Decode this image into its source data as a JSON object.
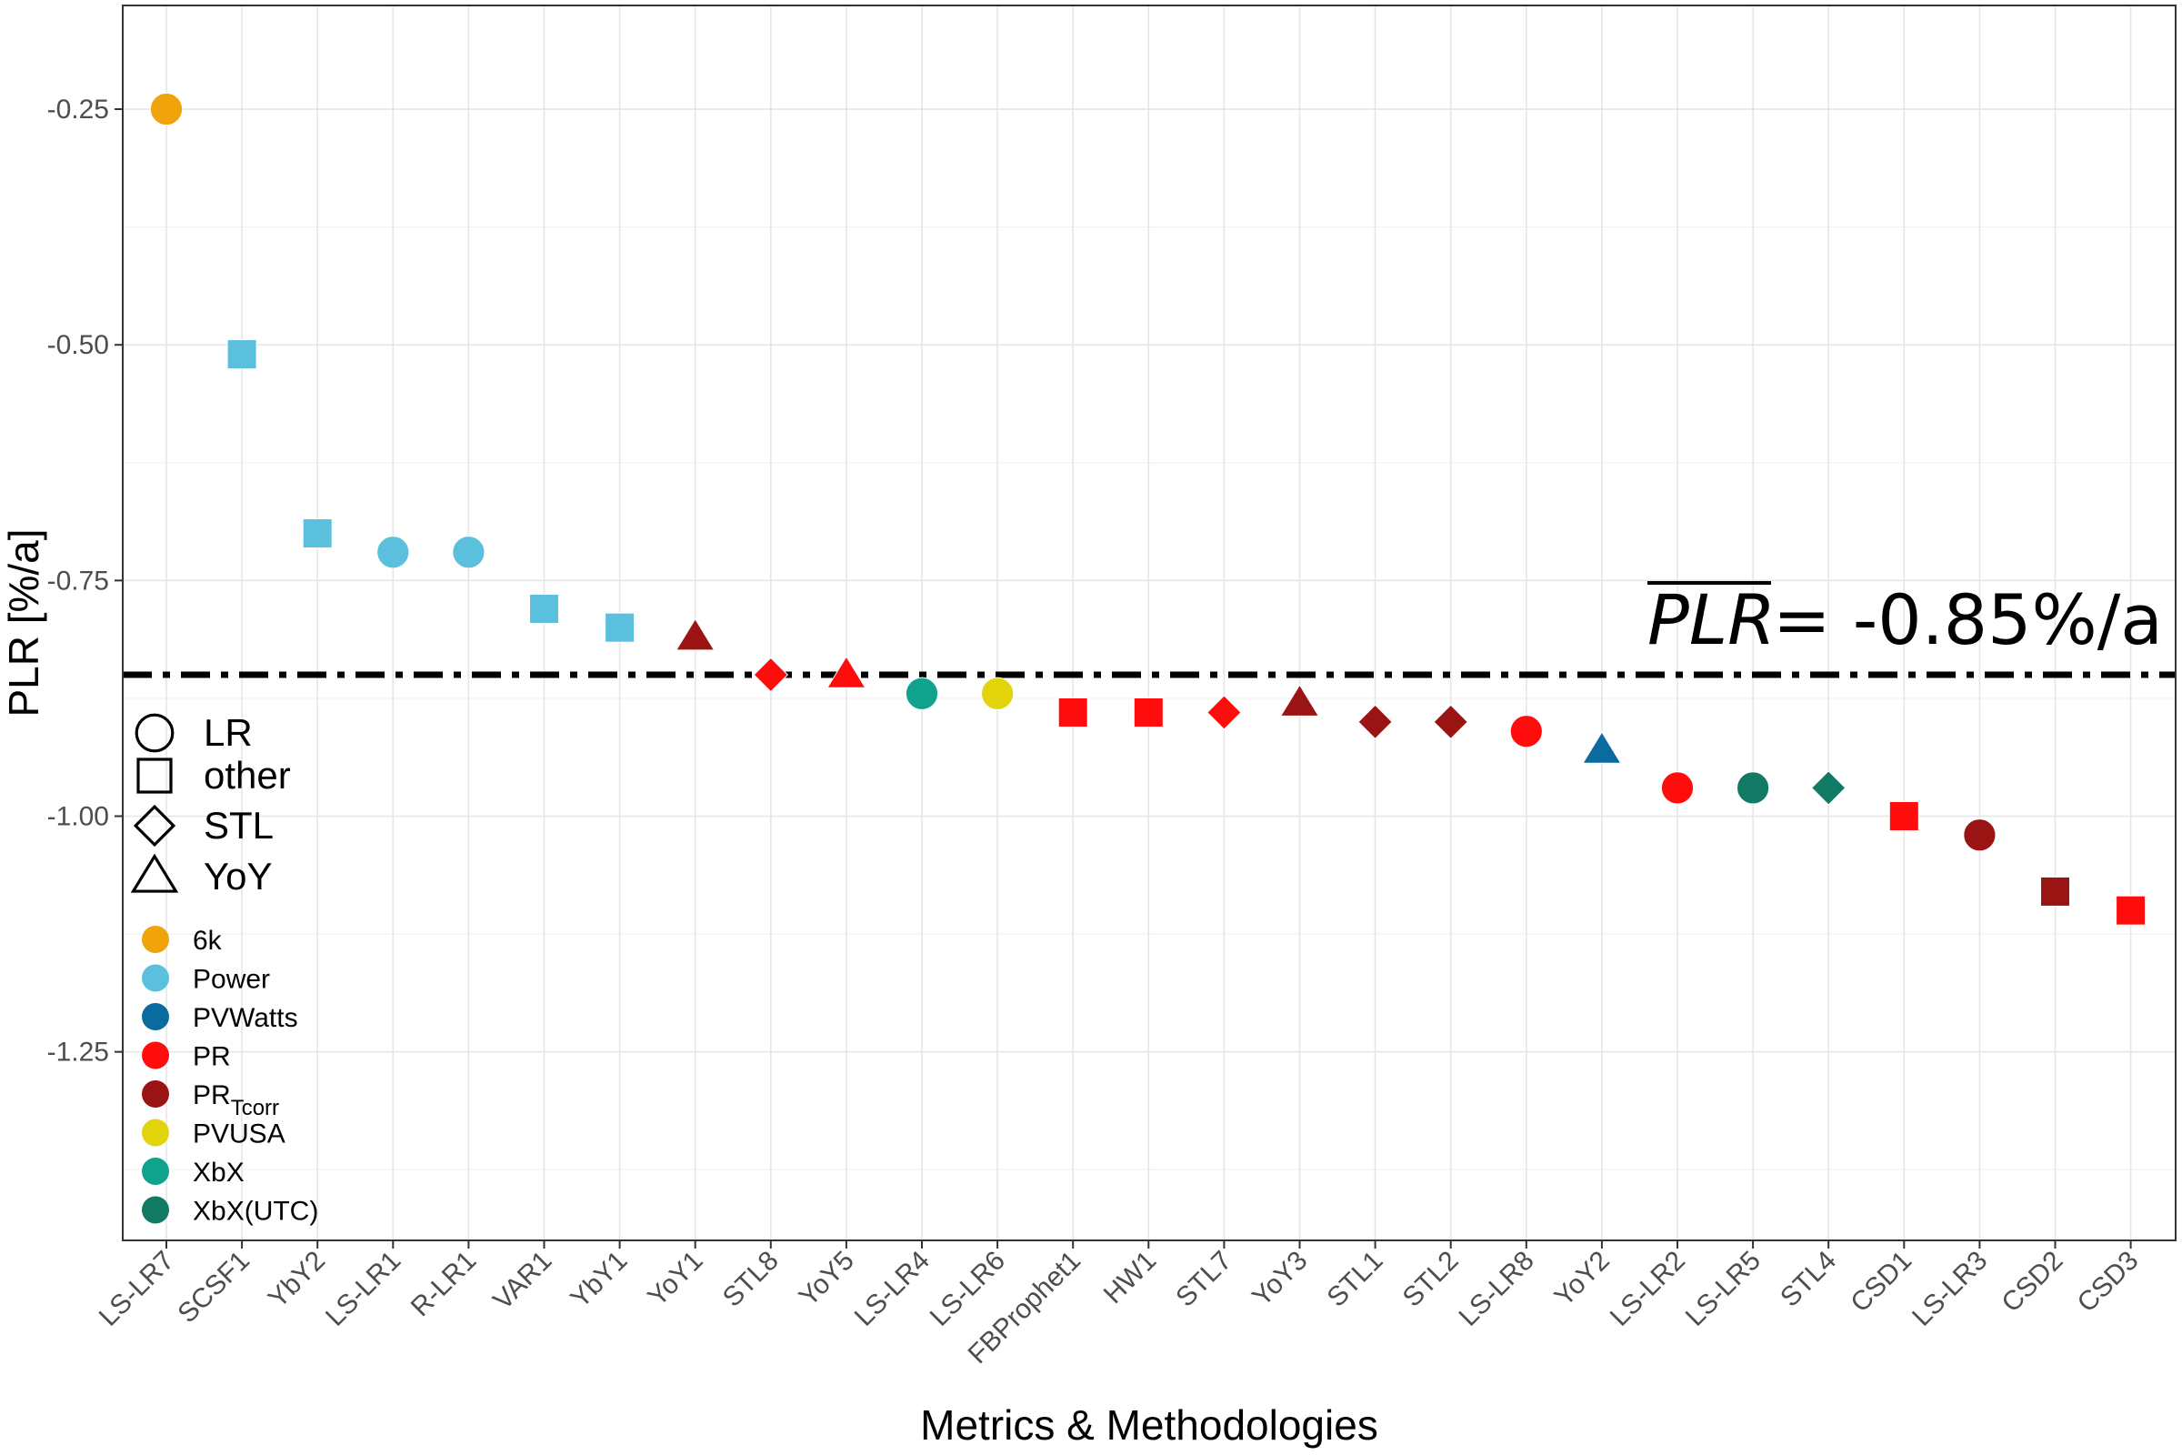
{
  "chart_data": {
    "type": "scatter",
    "xlabel": "Metrics & Methodologies",
    "ylabel": "PLR [%/a]",
    "ylim": [
      -1.45,
      -0.14
    ],
    "y_ticks": [
      -0.25,
      -0.5,
      -0.75,
      -1.0,
      -1.25
    ],
    "y_tick_labels": [
      "-0.25",
      "-0.50",
      "-0.75",
      "-1.00",
      "-1.25"
    ],
    "grid": true,
    "categories": [
      "LS-LR7",
      "SCSF1",
      "YbY2",
      "LS-LR1",
      "R-LR1",
      "VAR1",
      "YbY1",
      "YoY1",
      "STL8",
      "YoY5",
      "LS-LR4",
      "LS-LR6",
      "FBProphet1",
      "HW1",
      "STL7",
      "YoY3",
      "STL1",
      "STL2",
      "LS-LR8",
      "YoY2",
      "LS-LR2",
      "LS-LR5",
      "STL4",
      "CSD1",
      "LS-LR3",
      "CSD2",
      "CSD3"
    ],
    "points": [
      {
        "label": "LS-LR7",
        "y": -0.25,
        "shape": "LR",
        "metric": "6k"
      },
      {
        "label": "SCSF1",
        "y": -0.51,
        "shape": "other",
        "metric": "Power"
      },
      {
        "label": "YbY2",
        "y": -0.7,
        "shape": "other",
        "metric": "Power"
      },
      {
        "label": "LS-LR1",
        "y": -0.72,
        "shape": "LR",
        "metric": "Power"
      },
      {
        "label": "R-LR1",
        "y": -0.72,
        "shape": "LR",
        "metric": "Power"
      },
      {
        "label": "VAR1",
        "y": -0.78,
        "shape": "other",
        "metric": "Power"
      },
      {
        "label": "YbY1",
        "y": -0.8,
        "shape": "other",
        "metric": "Power"
      },
      {
        "label": "YoY1",
        "y": -0.81,
        "shape": "YoY",
        "metric": "PR_Tcorr"
      },
      {
        "label": "STL8",
        "y": -0.85,
        "shape": "STL",
        "metric": "PR"
      },
      {
        "label": "YoY5",
        "y": -0.85,
        "shape": "YoY",
        "metric": "PR"
      },
      {
        "label": "LS-LR4",
        "y": -0.87,
        "shape": "LR",
        "metric": "XbX"
      },
      {
        "label": "LS-LR6",
        "y": -0.87,
        "shape": "LR",
        "metric": "PVUSA"
      },
      {
        "label": "FBProphet1",
        "y": -0.89,
        "shape": "other",
        "metric": "PR"
      },
      {
        "label": "HW1",
        "y": -0.89,
        "shape": "other",
        "metric": "PR"
      },
      {
        "label": "STL7",
        "y": -0.89,
        "shape": "STL",
        "metric": "PR"
      },
      {
        "label": "YoY3",
        "y": -0.88,
        "shape": "YoY",
        "metric": "PR_Tcorr"
      },
      {
        "label": "STL1",
        "y": -0.9,
        "shape": "STL",
        "metric": "PR_Tcorr"
      },
      {
        "label": "STL2",
        "y": -0.9,
        "shape": "STL",
        "metric": "PR_Tcorr"
      },
      {
        "label": "LS-LR8",
        "y": -0.91,
        "shape": "LR",
        "metric": "PR"
      },
      {
        "label": "YoY2",
        "y": -0.93,
        "shape": "YoY",
        "metric": "PVWatts"
      },
      {
        "label": "LS-LR2",
        "y": -0.97,
        "shape": "LR",
        "metric": "PR"
      },
      {
        "label": "LS-LR5",
        "y": -0.97,
        "shape": "LR",
        "metric": "XbX(UTC)"
      },
      {
        "label": "STL4",
        "y": -0.97,
        "shape": "STL",
        "metric": "XbX(UTC)"
      },
      {
        "label": "CSD1",
        "y": -1.0,
        "shape": "other",
        "metric": "PR"
      },
      {
        "label": "LS-LR3",
        "y": -1.02,
        "shape": "LR",
        "metric": "PR_Tcorr"
      },
      {
        "label": "CSD2",
        "y": -1.08,
        "shape": "other",
        "metric": "PR_Tcorr"
      },
      {
        "label": "CSD3",
        "y": -1.1,
        "shape": "other",
        "metric": "PR"
      }
    ],
    "mean_line": {
      "y": -0.85,
      "style": "dash-dot",
      "label_symbol": "PLR",
      "label_value": " = -0.85%/a"
    },
    "legend_position": "left, inside plot",
    "shape_legend": [
      {
        "key": "LR",
        "label": "LR",
        "shape": "circle"
      },
      {
        "key": "other",
        "label": "other",
        "shape": "square"
      },
      {
        "key": "STL",
        "label": "STL",
        "shape": "diamond"
      },
      {
        "key": "YoY",
        "label": "YoY",
        "shape": "triangle"
      }
    ],
    "color_legend": [
      {
        "key": "6k",
        "label": "6k",
        "sub": "",
        "color": "#F0A30A"
      },
      {
        "key": "Power",
        "label": "Power",
        "sub": "",
        "color": "#5BC0DE"
      },
      {
        "key": "PVWatts",
        "label": "PVWatts",
        "sub": "",
        "color": "#0B6B9E"
      },
      {
        "key": "PR",
        "label": "PR",
        "sub": "",
        "color": "#FF0D0D"
      },
      {
        "key": "PR_Tcorr",
        "label": "PR",
        "sub": "Tcorr",
        "color": "#9B1414"
      },
      {
        "key": "PVUSA",
        "label": "PVUSA",
        "sub": "",
        "color": "#E2D40B"
      },
      {
        "key": "XbX",
        "label": "XbX",
        "sub": "",
        "color": "#0FA38E"
      },
      {
        "key": "XbX(UTC)",
        "label": "XbX(UTC)",
        "sub": "",
        "color": "#127A64"
      }
    ]
  }
}
